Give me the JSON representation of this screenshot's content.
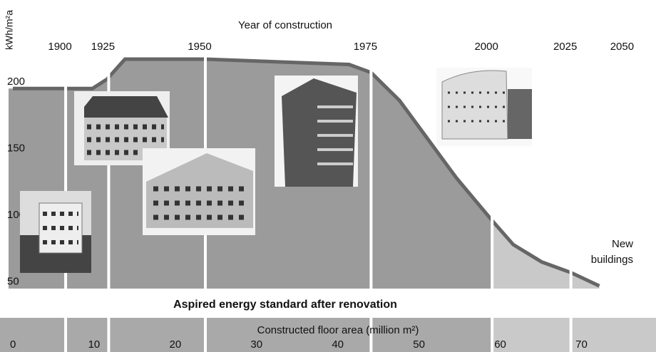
{
  "chart_data": {
    "type": "area",
    "x_label": "Constructed floor area (million m²)",
    "y_label": "kWh/m²a",
    "top_axis_label": "Year of construction",
    "band_label": "Aspired energy standard after renovation",
    "annotation": "New buildings",
    "xlim": [
      0,
      79
    ],
    "ylim": [
      45,
      240
    ],
    "xticks": [
      0,
      10,
      20,
      30,
      40,
      50,
      60,
      70
    ],
    "yticks": [
      50,
      100,
      150,
      200
    ],
    "year_ticks": [
      {
        "value": 6.5,
        "label": "1900"
      },
      {
        "value": 11.8,
        "label": "1925"
      },
      {
        "value": 23.7,
        "label": "1950"
      },
      {
        "value": 44.1,
        "label": "1975"
      },
      {
        "value": 59,
        "label": "2000"
      },
      {
        "value": 68.7,
        "label": "2025"
      },
      {
        "value": 75.7,
        "label": "2050"
      }
    ],
    "x": [
      0,
      6.5,
      9.8,
      11.6,
      13.8,
      23.7,
      41.4,
      44.1,
      47.6,
      51.1,
      54.6,
      59,
      61.6,
      65.1,
      68.7,
      72.2
    ],
    "values": [
      195,
      195,
      195,
      202,
      217,
      217,
      213,
      207,
      186,
      157,
      128,
      96,
      78,
      65,
      57,
      47
    ],
    "color": "#9b9b9b",
    "new_color": "#c9c9c9",
    "line_color": "#666666"
  }
}
